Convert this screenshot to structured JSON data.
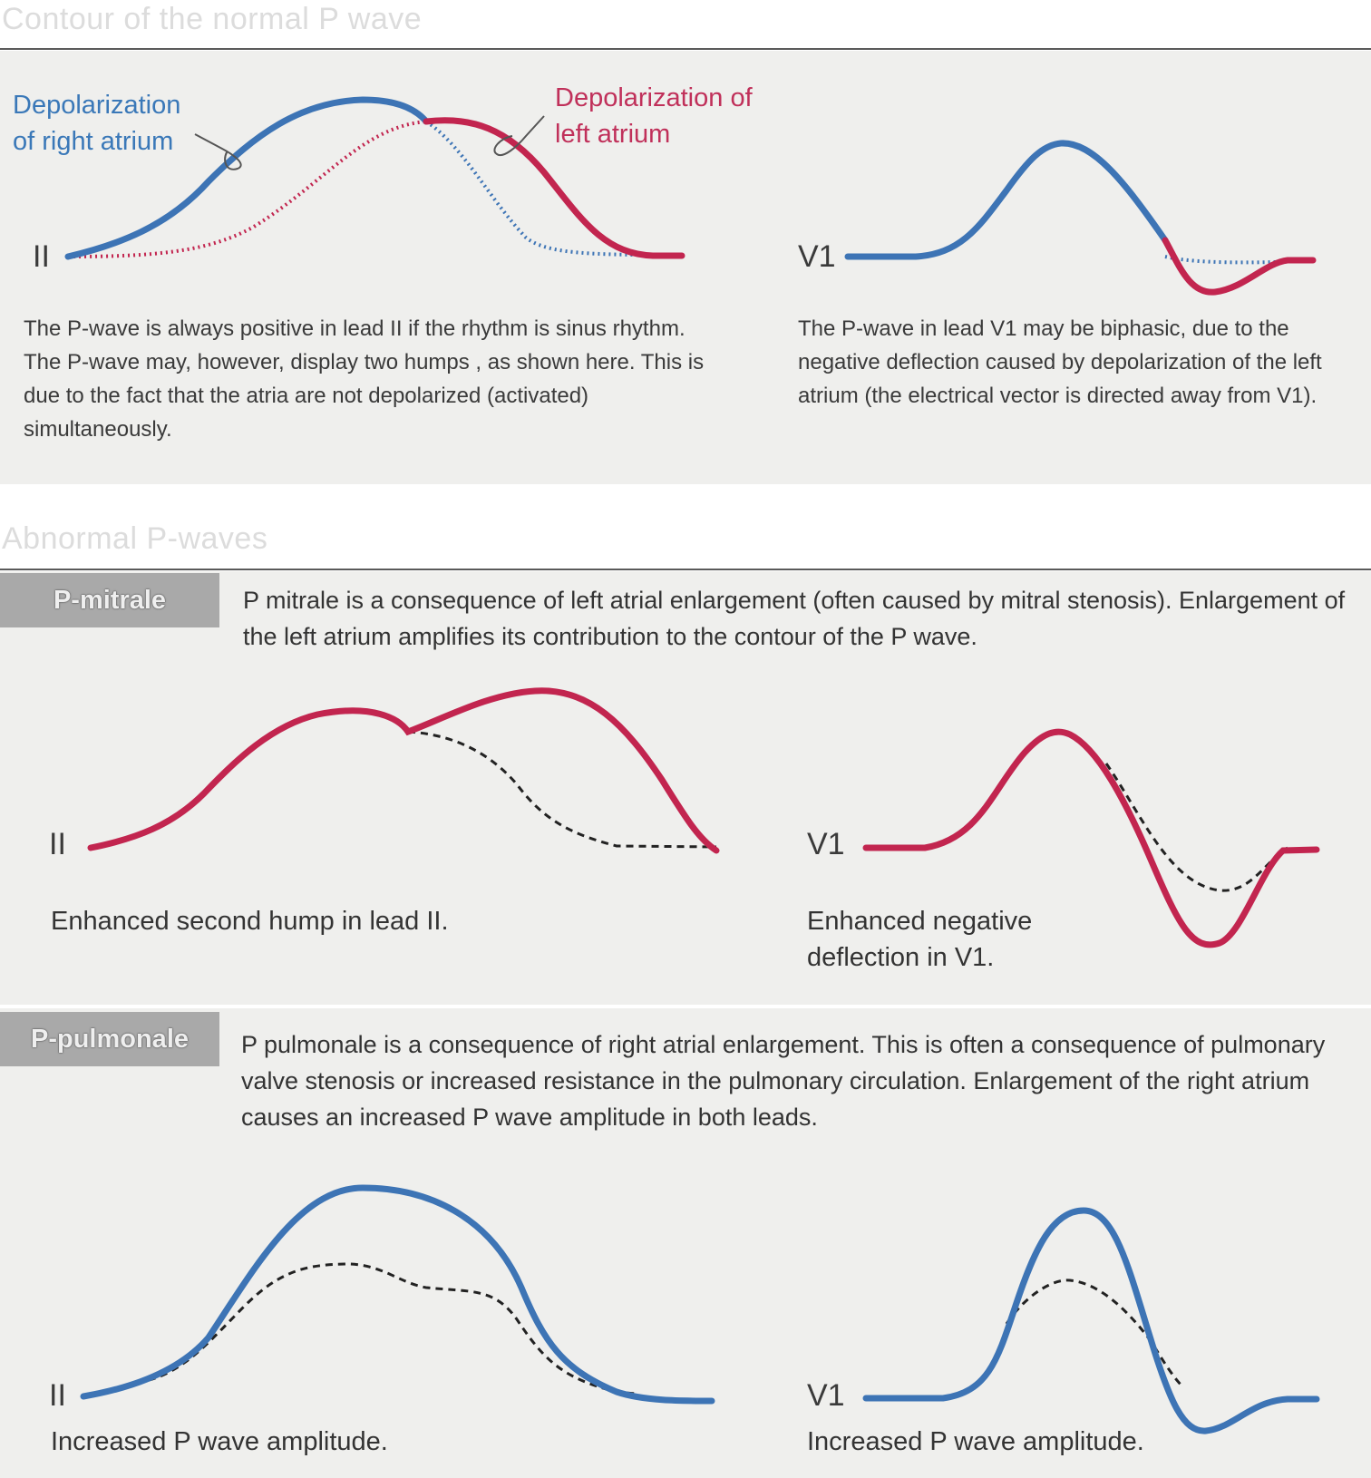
{
  "sections": {
    "normal_title": "Contour of the normal P wave",
    "abnormal_title": "Abnormal P-waves"
  },
  "normal": {
    "annotation_right_atrium": "Depolarization of right atrium",
    "annotation_right_atrium_l1": "Depolarization",
    "annotation_right_atrium_l2": "of right atrium",
    "annotation_left_atrium_l1": "Depolarization of",
    "annotation_left_atrium_l2": "left atrium",
    "lead_ii": "II",
    "lead_v1": "V1",
    "text_ii": "The P-wave is always positive in lead II if the rhythm is sinus rhythm. The P-wave may, however, display two humps , as shown here. This is due to the fact that the atria are not depolarized (activated) simultaneously.",
    "text_v1": "The P-wave in lead V1 may be biphasic, due to the negative deflection caused by depolarization of the left atrium (the electrical vector is directed away from V1)."
  },
  "mitrale": {
    "label": "P-mitrale",
    "description": "P mitrale is a consequence of left atrial enlargement (often caused by mitral stenosis). Enlargement of the left atrium amplifies its contribution to the contour of the P wave.",
    "lead_ii": "II",
    "lead_v1": "V1",
    "caption_ii": "Enhanced second hump in lead II.",
    "caption_v1": "Enhanced negative deflection in V1."
  },
  "pulmonale": {
    "label": "P-pulmonale",
    "description": "P pulmonale is a consequence of right atrial enlargement. This is often a consequence of pulmonary valve stenosis or increased resistance in the pulmonary circulation. Enlargement of the right atrium causes an increased P wave amplitude in both leads.",
    "lead_ii": "II",
    "lead_v1": "V1",
    "caption_ii": "Increased P wave amplitude.",
    "caption_v1": "Increased P wave amplitude."
  },
  "colors": {
    "blue_wave": "#3d74b5",
    "red_wave": "#c2254f",
    "panel_bg": "#efefed",
    "label_bg": "#a9a9a9",
    "heading_text": "#dcdcdc"
  }
}
